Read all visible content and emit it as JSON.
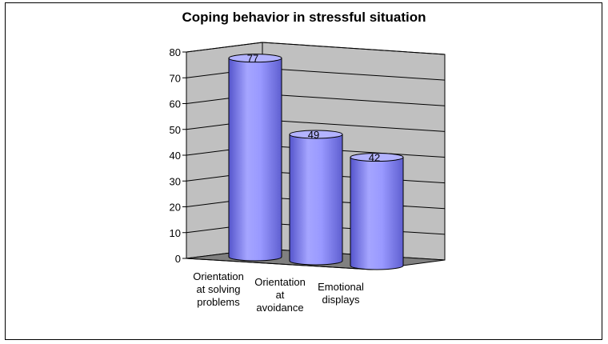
{
  "chart_data": {
    "type": "bar",
    "title": "Coping behavior in stressful situation",
    "categories": [
      [
        "Orientation",
        "at solving",
        "problems"
      ],
      [
        "Orientation",
        "at",
        "avoidance"
      ],
      [
        "Emotional",
        "displays"
      ]
    ],
    "values": [
      77,
      49,
      42
    ],
    "data_labels": [
      "77",
      "49",
      "42"
    ],
    "ylim": [
      0,
      80
    ],
    "yticks": [
      "0",
      "10",
      "20",
      "30",
      "40",
      "50",
      "60",
      "70",
      "80"
    ],
    "grid": true,
    "legend": "none",
    "colors": {
      "bar_front": "#9999ff",
      "bar_top": "#b3b3ff",
      "wall": "#c0c0c0",
      "floor": "#808080",
      "grid": "#000000"
    }
  }
}
